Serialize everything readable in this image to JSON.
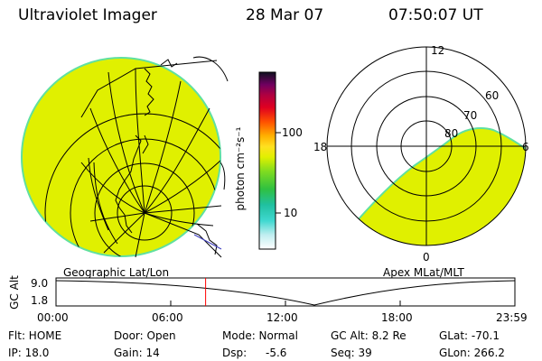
{
  "header": {
    "instrument": "Ultraviolet Imager",
    "date": "28 Mar 07",
    "time": "07:50:07 UT"
  },
  "colorbar": {
    "unit_label": "photon cm⁻²s⁻¹",
    "ticks": [
      "100",
      "10"
    ],
    "scale": "log"
  },
  "polar_plot": {
    "hour_labels": [
      "12",
      "18",
      "6",
      "0"
    ],
    "lat_labels": [
      "60",
      "70",
      "80"
    ]
  },
  "panels": {
    "left_label": "Geographic Lat/Lon",
    "right_label": "Apex MLat/MLT"
  },
  "altitude_plot": {
    "ylabel": "GC Alt",
    "yticks": [
      "9.0",
      "1.8"
    ],
    "xticks": [
      "00:00",
      "06:00",
      "12:00",
      "18:00",
      "23:59"
    ],
    "current_time_fraction": 0.326,
    "marker_color": "#ff0000"
  },
  "info": {
    "flt": "Flt: HOME",
    "ip": "IP: 18.0",
    "door": "Door: Open",
    "gain": "Gain: 14",
    "mode": "Mode: Normal",
    "dsp_label": "Dsp:",
    "dsp_value": "-5.6",
    "gcalt": "GC Alt: 8.2 Re",
    "seq": "Seq: 39",
    "glat": "GLat: -70.1",
    "glon": "GLon: 266.2"
  },
  "colors": {
    "fill": "#e0f000",
    "fill_edge": "#60e0a0"
  }
}
